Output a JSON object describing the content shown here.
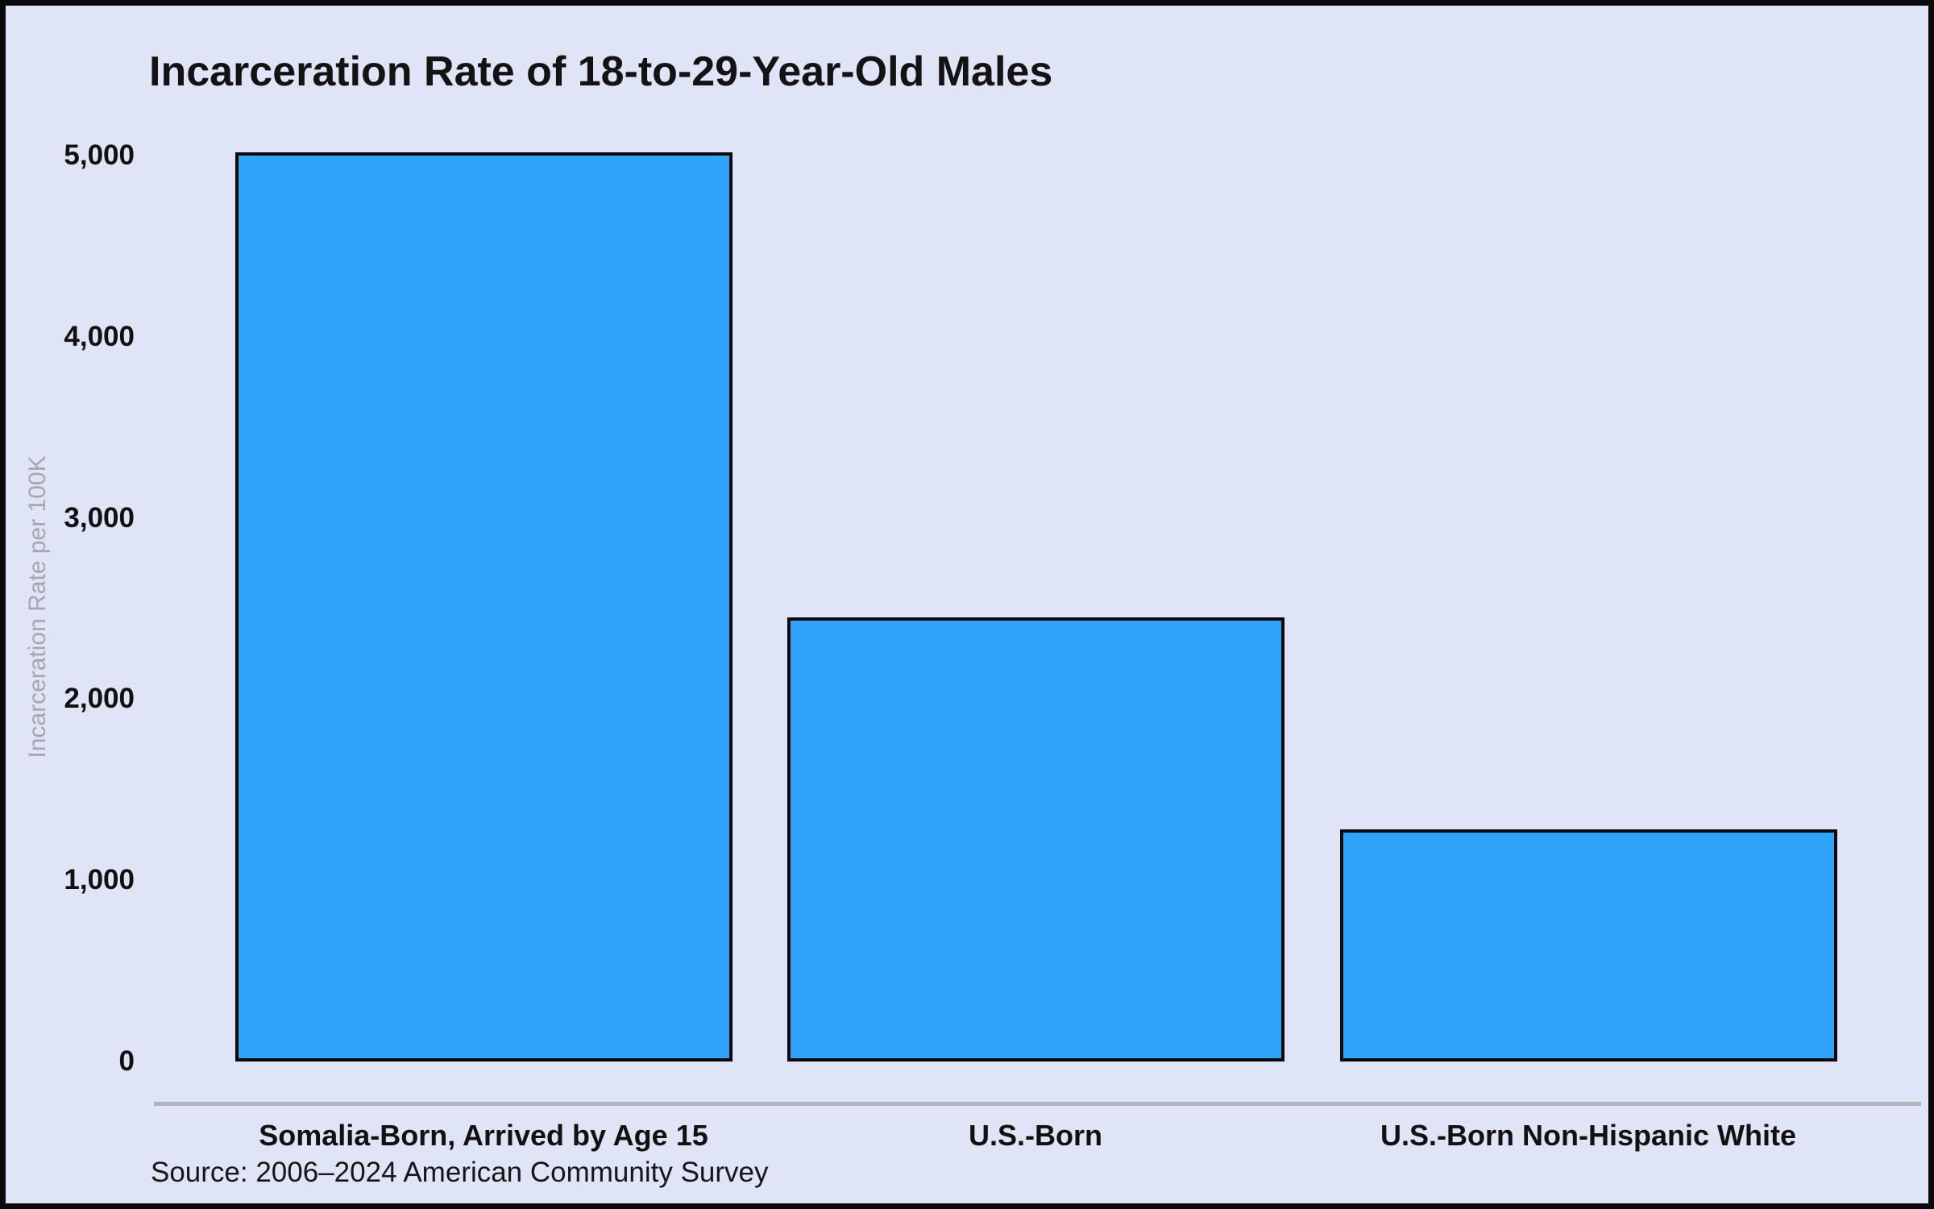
{
  "chart_data": {
    "type": "bar",
    "title": "Incarceration Rate of 18-to-29-Year-Old Males",
    "ylabel": "Incarceration Rate per 100K",
    "xlabel": "",
    "categories": [
      "Somalia-Born, Arrived by Age 15",
      "U.S.-Born",
      "U.S.-Born Non-Hispanic White"
    ],
    "values": [
      5020,
      2450,
      1280
    ],
    "ylim": [
      0,
      5000
    ],
    "yticks": [
      0,
      1000,
      2000,
      3000,
      4000,
      5000
    ],
    "ytick_labels": [
      "0",
      "1,000",
      "2,000",
      "3,000",
      "4,000",
      "5,000"
    ],
    "grid": false,
    "legend": false,
    "source_note": "Source: 2006–2024 American Community Survey",
    "colors": {
      "background": "#e0e4f7",
      "bar_fill": "#2fa3fa",
      "bar_border": "#0a0a0c",
      "axis_line": "#b2b2ba",
      "ylabel_text": "#a6a6ae",
      "text": "#131313"
    }
  }
}
